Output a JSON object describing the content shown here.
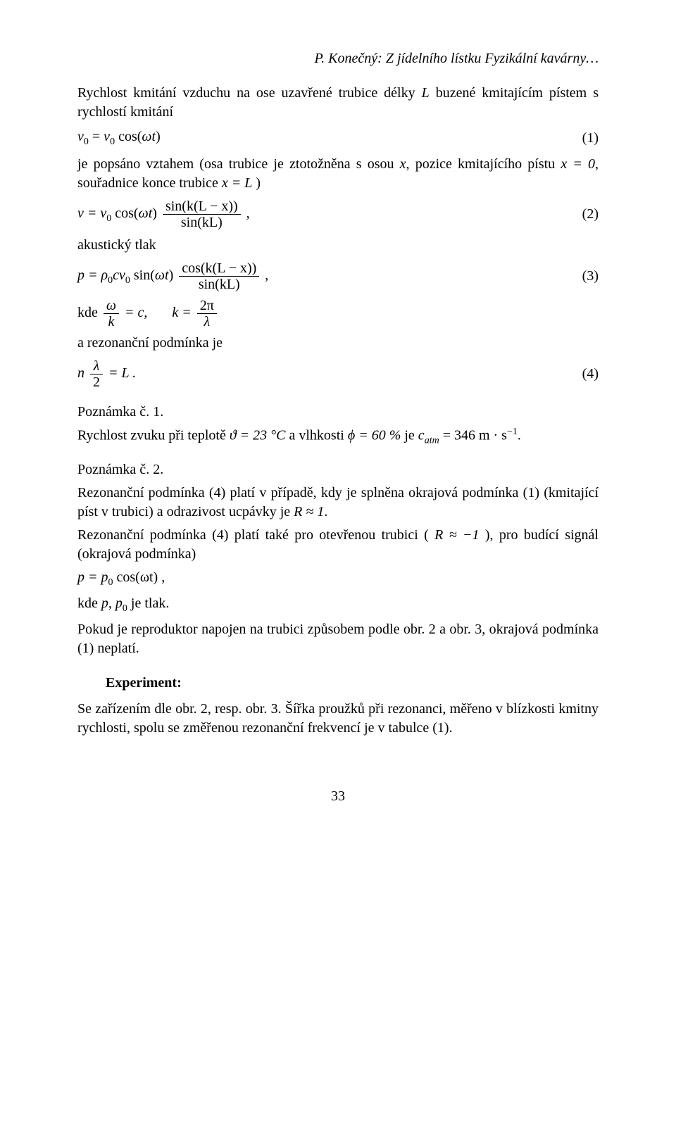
{
  "colors": {
    "background": "#ffffff",
    "text": "#000000",
    "rule": "#000000"
  },
  "typography": {
    "font_family": "Times New Roman",
    "body_fontsize_pt": 15,
    "header_fontsize_pt": 15,
    "italic_header": true
  },
  "header": "P. Konečný: Z jídelního lístku Fyzikální kavárny…",
  "intro_part1": "Rychlost kmitání vzduchu na ose uzavřené trubice délky ",
  "intro_L": "L",
  "intro_part2": " buzené kmitajícím pístem s rychlostí kmitání",
  "eq1": {
    "lhs": "v",
    "sub0": "0",
    "eq": " = ",
    "rhs_v": "v",
    "rhs_cos": " cos(",
    "omega": "ω",
    "t": "t",
    "close": ")",
    "num": "(1)"
  },
  "line2_part1": "je popsáno vztahem (osa trubice je ztotožněna s osou ",
  "line2_x": "x",
  "line2_part2": ", pozice kmitajícího pístu ",
  "line2_x0": "x = 0",
  "line2_part3": ", souřadnice konce trubice ",
  "line2_xL": "x = L",
  "line2_part4": " )",
  "eq2": {
    "pre": "v = v",
    "sub0": "0",
    "cos": " cos(",
    "omega": "ω",
    "t": "t",
    "close": ")",
    "num_frac": "sin(k(L − x))",
    "den_frac": "sin(kL)",
    "comma": " ,",
    "num": "(2)"
  },
  "acoustic_pressure": "akustický tlak",
  "eq3": {
    "pre": "p = ",
    "rho": "ρ",
    "sub0a": "0",
    "cv": "cv",
    "sub0b": "0",
    "sin": " sin(",
    "omega": "ω",
    "t": "t",
    "close": ")",
    "num_frac": "cos(k(L − x))",
    "den_frac": "sin(kL)",
    "comma": " ,",
    "num": "(3)"
  },
  "where_line": {
    "kde": "kde ",
    "frac1_num": "ω",
    "frac1_den": "k",
    "eqc": " = c,",
    "spacer": "      ",
    "k_eq": "k = ",
    "frac2_num": "2π",
    "frac2_den": "λ"
  },
  "resonance_label": "a rezonanční podmínka je",
  "eq4": {
    "n": "n",
    "frac_num": "λ",
    "frac_den": "2",
    "eqL": " = L .",
    "num": "(4)"
  },
  "note1_head": "Poznámka č. 1.",
  "note1_body_a": "Rychlost zvuku při teplotě ",
  "note1_theta": "ϑ = 23 °C",
  "note1_body_b": " a vlhkosti ",
  "note1_phi": "ϕ = 60 %",
  "note1_body_c": " je ",
  "note1_catm_c": "c",
  "note1_catm_sub": "atm",
  "note1_catm_val": " = 346 m · s",
  "note1_catm_exp": "−1",
  "note1_period": ".",
  "note2_head": "Poznámka č. 2.",
  "note2_line1_a": "Rezonanční podmínka (4) platí v případě, kdy je splněna okrajová podmínka (1) (kmitající píst v trubici) a odrazivost ucpávky je ",
  "note2_R1": "R ≈ 1",
  "note2_line1_b": ".",
  "note2_line2_a": "Rezonanční podmínka (4) platí také pro otevřenou trubici ( ",
  "note2_Rm1": "R ≈ −1",
  "note2_line2_b": " ), pro budící signál (okrajová podmínka)",
  "eq_p": {
    "body": "p = p",
    "sub0": "0",
    "cos": " cos(ωt) ,"
  },
  "where_p_a": "kde ",
  "where_p_p": "p",
  "where_p_b": ", ",
  "where_p_p0": "p",
  "where_p_p0sub": "0",
  "where_p_c": " je tlak.",
  "repro_line": "Pokud je reproduktor napojen na trubici způsobem podle obr. 2 a obr. 3, okrajová podmínka (1) neplatí.",
  "experiment_head": "Experiment:",
  "experiment_body": "Se zařízením dle obr. 2, resp. obr. 3. Šířka proužků při rezonanci, měřeno v blízkosti kmitny rychlosti, spolu se změřenou rezonanční frekvencí je v tabulce (1).",
  "page_number": "33"
}
